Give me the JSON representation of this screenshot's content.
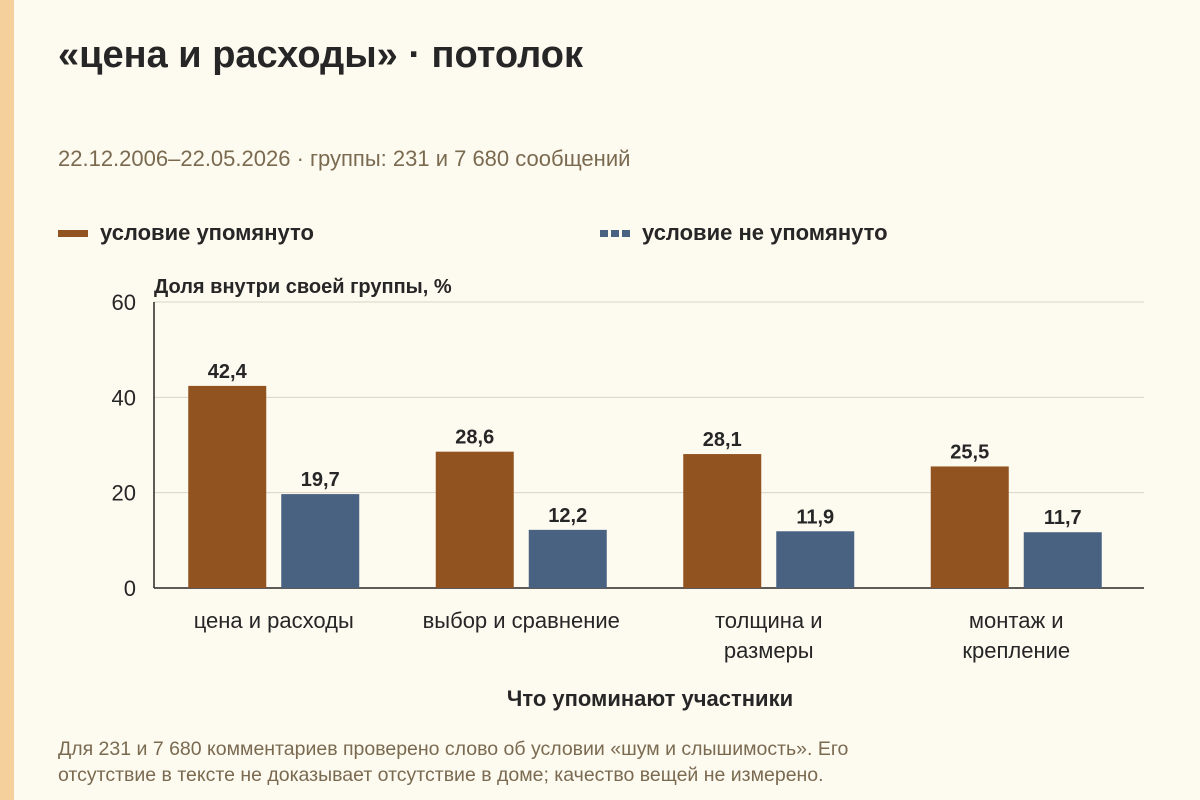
{
  "title": "«цена и расходы» · потолок",
  "subtitle": "22.12.2006–22.05.2026 · группы: 231 и 7 680 сообщений",
  "colors": {
    "series1": "#91531f",
    "series2": "#4a6282",
    "grid": "#d9d4c4",
    "axis": "#262626",
    "accent": "#f5cf9c"
  },
  "chart_data": {
    "type": "bar",
    "ylabel": "Доля внутри своей группы, %",
    "xlabel": "Что упоминают участники",
    "ylim": [
      0,
      60
    ],
    "yticks": [
      0,
      20,
      40,
      60
    ],
    "grid": true,
    "legend": "top",
    "categories": [
      [
        "цена и расходы"
      ],
      [
        "выбор и сравнение"
      ],
      [
        "толщина и",
        "размеры"
      ],
      [
        "монтаж и",
        "крепление"
      ]
    ],
    "series": [
      {
        "name": "условие упомянуто",
        "values": [
          42.4,
          28.6,
          28.1,
          25.5
        ],
        "labels": [
          "42,4",
          "28,6",
          "28,1",
          "25,5"
        ]
      },
      {
        "name": "условие не упомянуто",
        "values": [
          19.7,
          12.2,
          11.9,
          11.7
        ],
        "labels": [
          "19,7",
          "12,2",
          "11,9",
          "11,7"
        ]
      }
    ]
  },
  "note_lines": [
    "Для 231 и 7 680 комментариев проверено слово об условии «шум и слышимость». Его",
    "отсутствие в тексте не доказывает отсутствие в доме; качество вещей не измерено."
  ]
}
